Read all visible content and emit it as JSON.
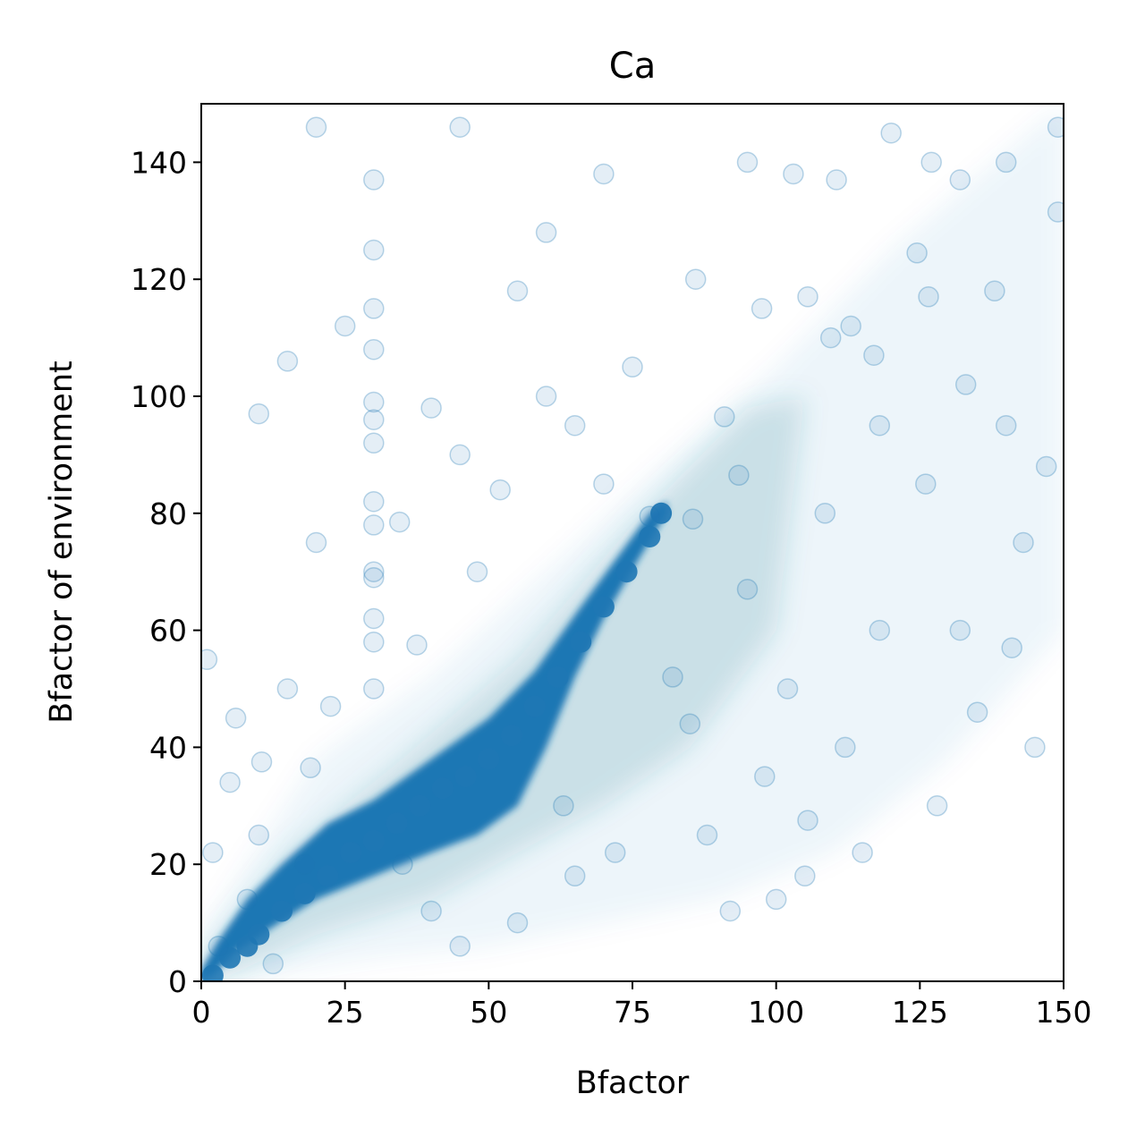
{
  "chart_data": {
    "type": "scatter",
    "title": "Ca",
    "xlabel": "Bfactor",
    "ylabel": "Bfactor of environment",
    "xlim": [
      0,
      150
    ],
    "ylim": [
      0,
      150
    ],
    "xticks": [
      {
        "value": 0,
        "label": "0"
      },
      {
        "value": 25,
        "label": "25"
      },
      {
        "value": 50,
        "label": "50"
      },
      {
        "value": 75,
        "label": "75"
      },
      {
        "value": 100,
        "label": "100"
      },
      {
        "value": 125,
        "label": "125"
      },
      {
        "value": 150,
        "label": "150"
      }
    ],
    "yticks": [
      {
        "value": 0,
        "label": "0"
      },
      {
        "value": 20,
        "label": "20"
      },
      {
        "value": 40,
        "label": "40"
      },
      {
        "value": 60,
        "label": "60"
      },
      {
        "value": 80,
        "label": "80"
      },
      {
        "value": 100,
        "label": "100"
      },
      {
        "value": 120,
        "label": "120"
      },
      {
        "value": 140,
        "label": "140"
      }
    ],
    "grid": false,
    "legend": "none",
    "series_color": "#1f77b4",
    "density_core": [
      [
        2,
        1
      ],
      [
        5,
        4
      ],
      [
        8,
        6
      ],
      [
        10,
        8
      ],
      [
        14,
        12
      ],
      [
        18,
        15
      ],
      [
        22,
        18
      ],
      [
        26,
        22
      ],
      [
        30,
        24
      ],
      [
        34,
        27
      ],
      [
        38,
        30
      ],
      [
        42,
        33
      ],
      [
        46,
        35
      ],
      [
        50,
        38
      ],
      [
        54,
        42
      ],
      [
        58,
        47
      ],
      [
        62,
        52
      ],
      [
        66,
        58
      ],
      [
        70,
        64
      ],
      [
        74,
        70
      ],
      [
        78,
        76
      ],
      [
        80,
        80
      ]
    ],
    "points": [
      [
        5,
        34
      ],
      [
        10.5,
        37.5
      ],
      [
        19,
        36.5
      ],
      [
        22.5,
        47
      ],
      [
        10,
        25
      ],
      [
        12.5,
        3
      ],
      [
        2,
        22
      ],
      [
        30,
        62
      ],
      [
        30,
        70
      ],
      [
        30,
        69
      ],
      [
        30,
        78
      ],
      [
        30,
        82
      ],
      [
        30,
        92
      ],
      [
        30,
        96
      ],
      [
        30,
        99
      ],
      [
        30,
        125
      ],
      [
        30,
        137
      ],
      [
        30,
        115
      ],
      [
        30,
        108
      ],
      [
        30,
        58
      ],
      [
        30,
        50
      ],
      [
        34.5,
        78.5
      ],
      [
        37.5,
        57.5
      ],
      [
        70,
        85
      ],
      [
        78,
        79.5
      ],
      [
        80,
        80
      ],
      [
        85.5,
        79
      ],
      [
        91,
        96.5
      ],
      [
        93.5,
        86.5
      ],
      [
        97.5,
        115
      ],
      [
        105.5,
        117
      ],
      [
        109.5,
        110
      ],
      [
        113,
        112
      ],
      [
        117,
        107
      ],
      [
        108.5,
        80
      ],
      [
        105.5,
        27.5
      ],
      [
        110.5,
        137
      ],
      [
        124.5,
        124.5
      ],
      [
        126.5,
        117
      ],
      [
        132,
        137
      ],
      [
        133,
        102
      ],
      [
        140,
        140
      ],
      [
        149,
        131.5
      ],
      [
        149,
        146
      ],
      [
        88,
        25
      ],
      [
        92,
        12
      ],
      [
        100,
        14
      ],
      [
        105,
        18
      ],
      [
        115,
        22
      ],
      [
        135,
        46
      ],
      [
        141,
        57
      ],
      [
        145,
        40
      ],
      [
        128,
        30
      ],
      [
        118,
        60
      ],
      [
        95,
        67
      ],
      [
        85,
        44
      ],
      [
        65,
        18
      ],
      [
        55,
        10
      ],
      [
        45,
        6
      ],
      [
        40,
        12
      ],
      [
        20,
        75
      ],
      [
        25,
        112
      ],
      [
        15,
        106
      ],
      [
        45,
        90
      ],
      [
        55,
        118
      ],
      [
        60,
        128
      ],
      [
        75,
        105
      ],
      [
        95,
        140
      ],
      [
        120,
        145
      ],
      [
        10,
        97
      ],
      [
        20,
        146
      ],
      [
        45,
        146
      ],
      [
        70,
        138
      ],
      [
        140,
        95
      ],
      [
        147,
        88
      ],
      [
        132,
        60
      ],
      [
        98,
        35
      ],
      [
        112,
        40
      ],
      [
        126,
        85
      ],
      [
        143,
        75
      ],
      [
        60,
        100
      ],
      [
        52,
        84
      ],
      [
        40,
        98
      ],
      [
        18,
        20
      ],
      [
        8,
        14
      ],
      [
        3,
        6
      ],
      [
        63,
        30
      ],
      [
        72,
        22
      ],
      [
        82,
        52
      ],
      [
        102,
        50
      ],
      [
        118,
        95
      ],
      [
        138,
        118
      ],
      [
        127,
        140
      ],
      [
        103,
        138
      ],
      [
        86,
        120
      ],
      [
        65,
        95
      ],
      [
        48,
        70
      ],
      [
        15,
        50
      ],
      [
        6,
        45
      ],
      [
        1,
        55
      ],
      [
        35,
        20
      ]
    ]
  }
}
